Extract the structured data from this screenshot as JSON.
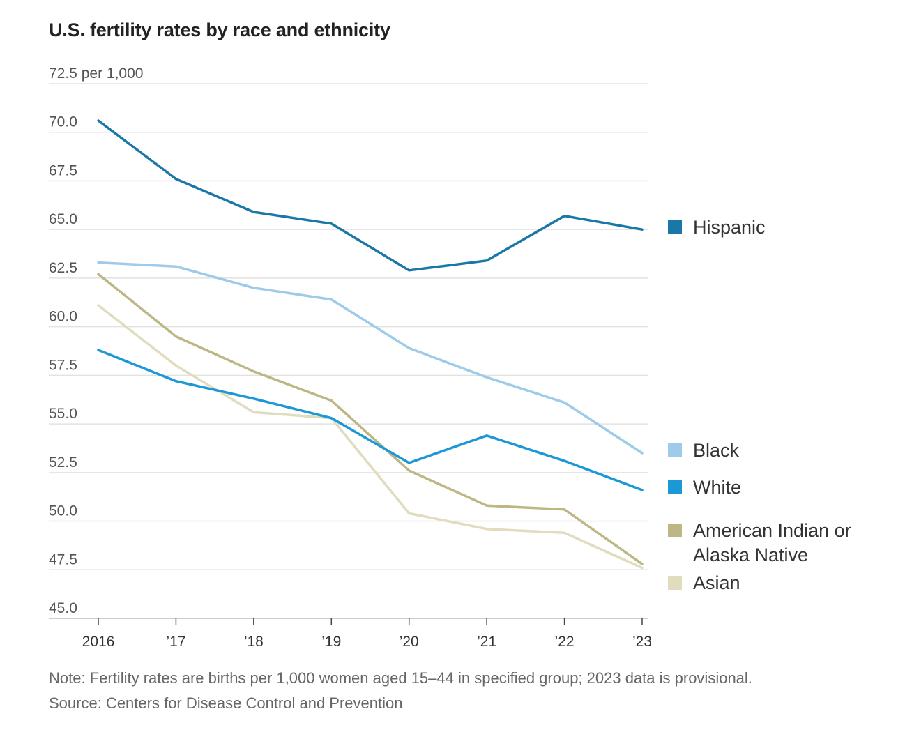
{
  "chart_data": {
    "type": "line",
    "title": "U.S. fertility rates by race and ethnicity",
    "ylabel": "per 1,000",
    "y_top_label": "72.5 per 1,000",
    "yticks": [
      45.0,
      47.5,
      50.0,
      52.5,
      55.0,
      57.5,
      60.0,
      62.5,
      65.0,
      67.5,
      70.0,
      72.5
    ],
    "ytick_labels": [
      "45.0",
      "47.5",
      "50.0",
      "52.5",
      "55.0",
      "57.5",
      "60.0",
      "62.5",
      "65.0",
      "67.5",
      "70.0",
      "72.5 per 1,000"
    ],
    "ylim": [
      45.0,
      72.5
    ],
    "x": [
      2016,
      2017,
      2018,
      2019,
      2020,
      2021,
      2022,
      2023
    ],
    "xtick_labels": [
      "2016",
      "’17",
      "’18",
      "’19",
      "’20",
      "’21",
      "’22",
      "’23"
    ],
    "grid": true,
    "legend_placement": "right",
    "series": [
      {
        "name": "Hispanic",
        "color": "#1a77a8",
        "values": [
          70.6,
          67.6,
          65.9,
          65.3,
          62.9,
          63.4,
          65.7,
          65.0
        ]
      },
      {
        "name": "Black",
        "color": "#9ecbea",
        "values": [
          63.3,
          63.1,
          62.0,
          61.4,
          58.9,
          57.4,
          56.1,
          53.5
        ]
      },
      {
        "name": "White",
        "color": "#1d98d6",
        "values": [
          58.8,
          57.2,
          56.3,
          55.3,
          53.0,
          54.4,
          53.1,
          51.6
        ]
      },
      {
        "name": "American Indian or Alaska Native",
        "color": "#bdb785",
        "values": [
          62.7,
          59.5,
          57.7,
          56.2,
          52.6,
          50.8,
          50.6,
          47.8
        ]
      },
      {
        "name": "Asian",
        "color": "#e0dcbd",
        "values": [
          61.1,
          58.0,
          55.6,
          55.3,
          50.4,
          49.6,
          49.4,
          47.6
        ]
      }
    ]
  },
  "legend": [
    {
      "label": "Hispanic",
      "color": "#1a77a8"
    },
    {
      "label": "Black",
      "color": "#9ecbea"
    },
    {
      "label": "White",
      "color": "#1d98d6"
    },
    {
      "label": "American Indian or Alaska Native",
      "color": "#bdb785"
    },
    {
      "label": "Asian",
      "color": "#e0dcbd"
    }
  ],
  "note": "Note: Fertility rates are births per 1,000 women aged 15–44 in specified group; 2023 data is provisional.",
  "source": "Source: Centers for Disease Control and Prevention"
}
